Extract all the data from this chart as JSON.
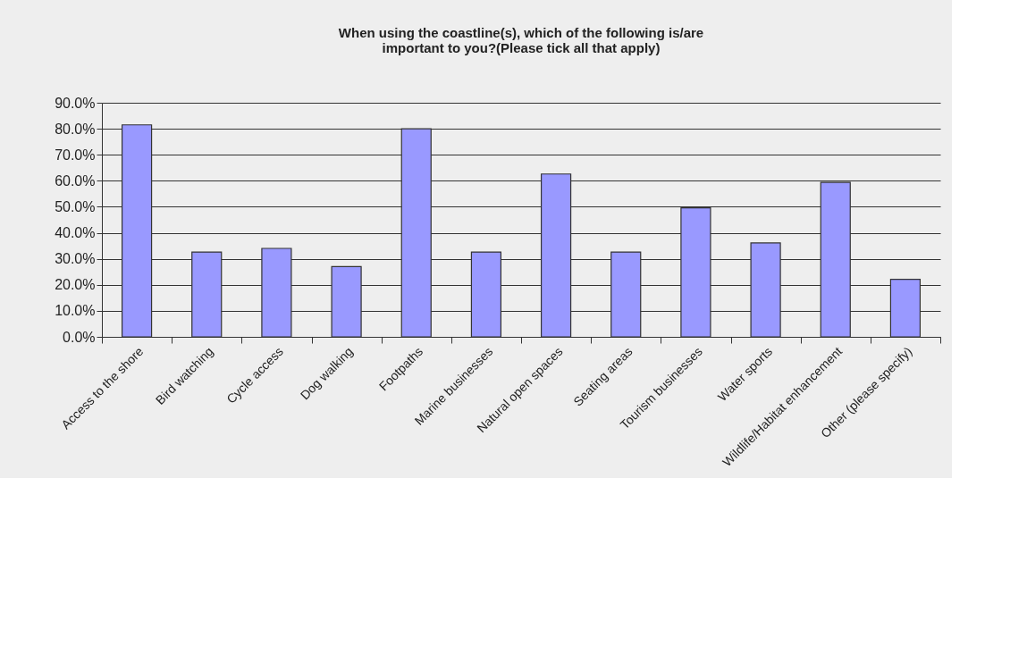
{
  "chart_data": {
    "type": "bar",
    "title": "When using the coastline(s), which of the following is/are important to you?(Please tick all that apply)",
    "categories": [
      "Access to the shore",
      "Bird watching",
      "Cycle access",
      "Dog walking",
      "Footpaths",
      "Marine businesses",
      "Natural open spaces",
      "Seating areas",
      "Tourism businesses",
      "Water sports",
      "Wildlife/Habitat enhancement",
      "Other (please specify)"
    ],
    "values": [
      81.5,
      32.6,
      34.0,
      27.0,
      80.0,
      32.6,
      62.6,
      32.6,
      49.6,
      36.1,
      59.4,
      22.1
    ],
    "color": "#9999ff",
    "ylim": [
      0,
      90
    ],
    "yticks": [
      {
        "value": 0,
        "label": "0.0%"
      },
      {
        "value": 10,
        "label": "10.0%"
      },
      {
        "value": 20,
        "label": "20.0%"
      },
      {
        "value": 30,
        "label": "30.0%"
      },
      {
        "value": 40,
        "label": "40.0%"
      },
      {
        "value": 50,
        "label": "50.0%"
      },
      {
        "value": 60,
        "label": "60.0%"
      },
      {
        "value": 70,
        "label": "70.0%"
      },
      {
        "value": 80,
        "label": "80.0%"
      },
      {
        "value": 90,
        "label": "90.0%"
      }
    ],
    "grid": "y"
  }
}
